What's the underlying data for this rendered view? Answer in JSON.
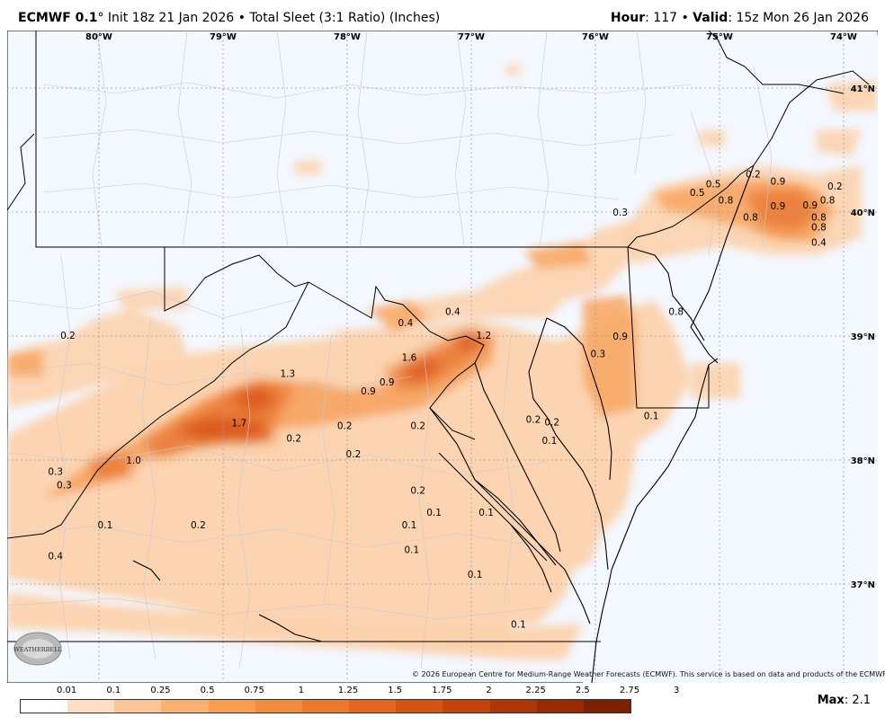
{
  "header": {
    "model": "ECMWF 0.1",
    "deg": "°",
    "init": " Init 18z 21 Jan 2026",
    "bullet": " • ",
    "product": "Total Sleet (3:1 Ratio) (Inches)",
    "hour_label": "Hour",
    "hour_value": ": 117 • ",
    "valid_label": "Valid",
    "valid_value": ": 15z Mon 26 Jan 2026"
  },
  "axes": {
    "lon_labels": [
      "80°W",
      "79°W",
      "78°W",
      "77°W",
      "76°W",
      "75°W",
      "74°W"
    ],
    "lat_labels": [
      "41°N",
      "40°N",
      "39°N",
      "38°N",
      "37°N"
    ]
  },
  "values": [
    {
      "text": "0.2",
      "lon": -80.25,
      "lat": 38.98
    },
    {
      "text": "0.3",
      "lon": -80.35,
      "lat": 37.88
    },
    {
      "text": "0.3",
      "lon": -80.28,
      "lat": 37.77
    },
    {
      "text": "0.4",
      "lon": -80.35,
      "lat": 37.2
    },
    {
      "text": "0.1",
      "lon": -79.95,
      "lat": 37.45
    },
    {
      "text": "1.0",
      "lon": -79.72,
      "lat": 37.97
    },
    {
      "text": "0.2",
      "lon": -79.2,
      "lat": 37.45
    },
    {
      "text": "1.7",
      "lon": -78.87,
      "lat": 38.27
    },
    {
      "text": "1.3",
      "lon": -78.48,
      "lat": 38.67
    },
    {
      "text": "0.2",
      "lon": -78.43,
      "lat": 38.15
    },
    {
      "text": "0.2",
      "lon": -78.02,
      "lat": 38.25
    },
    {
      "text": "0.2",
      "lon": -77.95,
      "lat": 38.02
    },
    {
      "text": "0.9",
      "lon": -77.83,
      "lat": 38.53
    },
    {
      "text": "0.9",
      "lon": -77.68,
      "lat": 38.6
    },
    {
      "text": "1.6",
      "lon": -77.5,
      "lat": 38.8
    },
    {
      "text": "0.4",
      "lon": -77.53,
      "lat": 39.08
    },
    {
      "text": "0.4",
      "lon": -77.15,
      "lat": 39.17
    },
    {
      "text": "1.2",
      "lon": -76.9,
      "lat": 38.98
    },
    {
      "text": "0.2",
      "lon": -77.43,
      "lat": 38.25
    },
    {
      "text": "0.2",
      "lon": -77.43,
      "lat": 37.73
    },
    {
      "text": "0.1",
      "lon": -77.3,
      "lat": 37.55
    },
    {
      "text": "0.1",
      "lon": -77.5,
      "lat": 37.45
    },
    {
      "text": "0.1",
      "lon": -77.48,
      "lat": 37.25
    },
    {
      "text": "0.1",
      "lon": -76.88,
      "lat": 37.55
    },
    {
      "text": "0.1",
      "lon": -76.97,
      "lat": 37.05
    },
    {
      "text": "0.1",
      "lon": -76.62,
      "lat": 36.65
    },
    {
      "text": "0.2",
      "lon": -76.5,
      "lat": 38.3
    },
    {
      "text": "0.2",
      "lon": -76.35,
      "lat": 38.28
    },
    {
      "text": "0.1",
      "lon": -76.37,
      "lat": 38.13
    },
    {
      "text": "0.3",
      "lon": -75.98,
      "lat": 38.83
    },
    {
      "text": "0.9",
      "lon": -75.8,
      "lat": 38.97
    },
    {
      "text": "0.8",
      "lon": -75.35,
      "lat": 39.17
    },
    {
      "text": "0.1",
      "lon": -75.55,
      "lat": 38.33
    },
    {
      "text": "0.3",
      "lon": -75.8,
      "lat": 39.97
    },
    {
      "text": "0.5",
      "lon": -75.18,
      "lat": 40.13
    },
    {
      "text": "0.5",
      "lon": -75.05,
      "lat": 40.2
    },
    {
      "text": "0.8",
      "lon": -74.95,
      "lat": 40.07
    },
    {
      "text": "0.2",
      "lon": -74.73,
      "lat": 40.28
    },
    {
      "text": "0.9",
      "lon": -74.53,
      "lat": 40.22
    },
    {
      "text": "0.2",
      "lon": -74.07,
      "lat": 40.18
    },
    {
      "text": "0.9",
      "lon": -74.53,
      "lat": 40.02
    },
    {
      "text": "0.8",
      "lon": -74.75,
      "lat": 39.93
    },
    {
      "text": "0.9",
      "lon": -74.27,
      "lat": 40.03
    },
    {
      "text": "0.8",
      "lon": -74.13,
      "lat": 40.07
    },
    {
      "text": "0.8",
      "lon": -74.2,
      "lat": 39.93
    },
    {
      "text": "0.8",
      "lon": -74.2,
      "lat": 39.85
    },
    {
      "text": "0.4",
      "lon": -74.2,
      "lat": 39.73
    }
  ],
  "legend": {
    "labels": [
      "0.01",
      "0.1",
      "0.25",
      "0.5",
      "0.75",
      "1",
      "1.25",
      "1.5",
      "1.75",
      "2",
      "2.25",
      "2.5",
      "2.75",
      "3"
    ],
    "colors": [
      "#ffffff",
      "#fde0c4",
      "#fcc597",
      "#fab070",
      "#f79e54",
      "#f38b3e",
      "#ec782d",
      "#e2661f",
      "#d45413",
      "#c3440b",
      "#ae3707",
      "#962b04",
      "#7c2002"
    ]
  },
  "max": {
    "label": "Max",
    "value": ": 2.1"
  },
  "copyright": "© 2026 European Centre for Medium-Range Weather Forecasts (ECMWF). This service is based on data and products of the ECMWF.",
  "logo_text": "WEATHERBELL"
}
